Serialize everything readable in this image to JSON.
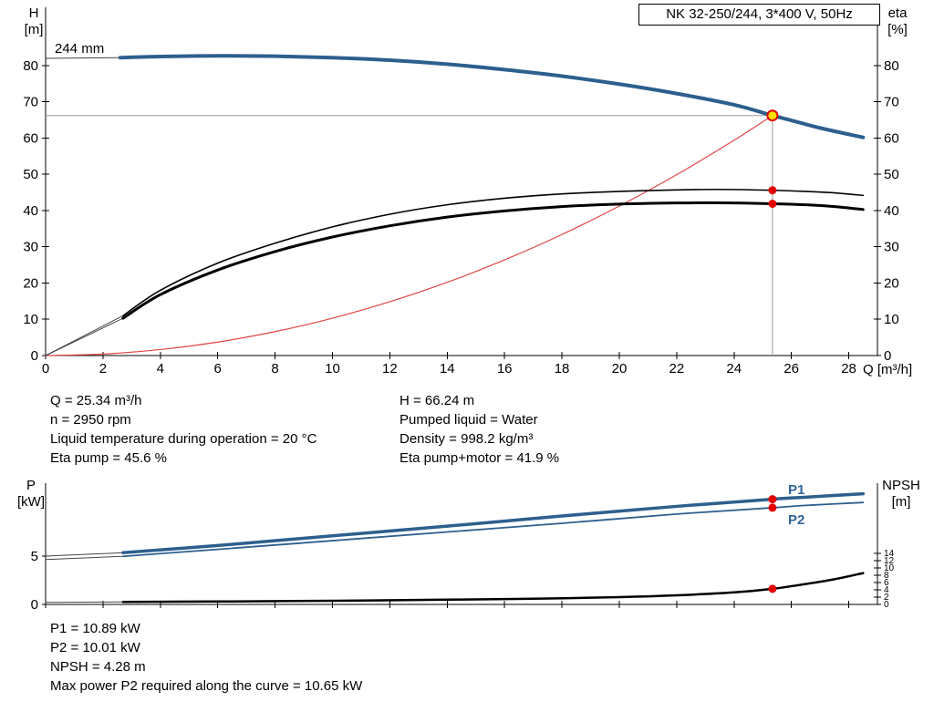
{
  "title_box": {
    "label": "NK 32-250/244, 3*400 V, 50Hz"
  },
  "top_chart_labels": {
    "y_left_title": "H",
    "y_left_unit": "[m]",
    "y_right_title": "eta",
    "y_right_unit": "[%]",
    "x_unit": "Q [m³/h]",
    "impeller": "244 mm"
  },
  "bottom_chart_labels": {
    "y_left_title": "P",
    "y_left_unit": "[kW]",
    "y_right_title": "NPSH",
    "y_right_unit": "[m]",
    "p1": "P1",
    "p2": "P2"
  },
  "info_top": {
    "left": [
      "Q = 25.34 m³/h",
      "n = 2950 rpm",
      "Liquid temperature during operation = 20 °C",
      "Eta pump = 45.6 %"
    ],
    "right": [
      "H = 66.24 m",
      "Pumped liquid = Water",
      "Density = 998.2 kg/m³",
      "Eta pump+motor = 41.9 %"
    ]
  },
  "info_bottom": [
    "P1 = 10.89 kW",
    "P2 = 10.01 kW",
    "NPSH = 4.28 m",
    "Max power P2 required along the curve = 10.65 kW"
  ],
  "colors": {
    "curve_blue": "#2d5f8e",
    "label_blue": "#336699",
    "red": "#e00000",
    "system_red": "#e04545",
    "duty_fill": "#ffdf00",
    "gray_line": "#999999",
    "black": "#000000"
  },
  "chart_data": [
    {
      "type": "line",
      "title": "NK 32-250/244, 3*400 V, 50Hz",
      "xlabel": "Q [m³/h]",
      "ylabel_left": "H [m]",
      "ylabel_right": "eta [%]",
      "xlim": [
        0,
        29
      ],
      "ylim_left": [
        0,
        96.1
      ],
      "ylim_right": [
        0,
        96.1
      ],
      "x_ticks": [
        0,
        2,
        4,
        6,
        8,
        10,
        12,
        14,
        16,
        18,
        20,
        22,
        24,
        26,
        28
      ],
      "y_ticks_left": [
        0,
        10,
        20,
        30,
        40,
        50,
        60,
        70,
        80
      ],
      "y_ticks_right": [
        0,
        10,
        20,
        30,
        40,
        50,
        60,
        70,
        80
      ],
      "series": [
        {
          "name": "system-curve",
          "axis": "left",
          "color_key": "system_red",
          "width": 1.2,
          "points": [
            [
              0,
              0
            ],
            [
              2,
              0.41
            ],
            [
              4,
              1.65
            ],
            [
              6,
              3.71
            ],
            [
              8,
              6.6
            ],
            [
              10,
              10.3
            ],
            [
              12,
              14.85
            ],
            [
              14,
              20.2
            ],
            [
              16,
              26.4
            ],
            [
              18,
              33.4
            ],
            [
              20,
              41.25
            ],
            [
              22,
              49.9
            ],
            [
              24,
              59.4
            ],
            [
              25.34,
              66.24
            ]
          ]
        },
        {
          "name": "eta-pump-curve",
          "axis": "right",
          "color_key": "black",
          "width": 1.6,
          "lead": [
            [
              0,
              0
            ],
            [
              2.7,
              11
            ]
          ],
          "points": [
            [
              2.7,
              11
            ],
            [
              4,
              18
            ],
            [
              6,
              25.5
            ],
            [
              8,
              31
            ],
            [
              10,
              35.5
            ],
            [
              12,
              39
            ],
            [
              14,
              41.6
            ],
            [
              16,
              43.4
            ],
            [
              18,
              44.6
            ],
            [
              20,
              45.3
            ],
            [
              22,
              45.7
            ],
            [
              23.5,
              45.85
            ],
            [
              25.34,
              45.6
            ],
            [
              26.5,
              45.3
            ],
            [
              27.5,
              44.9
            ],
            [
              28.5,
              44.2
            ]
          ]
        },
        {
          "name": "eta-pump-motor-curve",
          "axis": "right",
          "color_key": "black",
          "width": 3,
          "lead": [
            [
              0,
              0
            ],
            [
              2.7,
              10.3
            ]
          ],
          "points": [
            [
              2.7,
              10.3
            ],
            [
              4,
              16.8
            ],
            [
              6,
              23.6
            ],
            [
              8,
              28.7
            ],
            [
              10,
              32.7
            ],
            [
              12,
              35.8
            ],
            [
              14,
              38.2
            ],
            [
              16,
              39.9
            ],
            [
              18,
              41.1
            ],
            [
              20,
              41.8
            ],
            [
              22,
              42.1
            ],
            [
              23.5,
              42.15
            ],
            [
              25.34,
              41.9
            ],
            [
              26.5,
              41.6
            ],
            [
              27.5,
              41.1
            ],
            [
              28.5,
              40.3
            ]
          ]
        },
        {
          "name": "head-curve-244mm",
          "axis": "left",
          "color_key": "curve_blue",
          "width": 4,
          "lead": [
            [
              0,
              82.0
            ],
            [
              2.6,
              82.2
            ]
          ],
          "points": [
            [
              2.6,
              82.2
            ],
            [
              4,
              82.5
            ],
            [
              6,
              82.7
            ],
            [
              8,
              82.6
            ],
            [
              10,
              82.2
            ],
            [
              12,
              81.5
            ],
            [
              14,
              80.4
            ],
            [
              16,
              78.9
            ],
            [
              18,
              77.1
            ],
            [
              20,
              74.9
            ],
            [
              22,
              72.3
            ],
            [
              24,
              69.2
            ],
            [
              25.34,
              66.24
            ],
            [
              26,
              64.9
            ],
            [
              27,
              62.8
            ],
            [
              28.5,
              60.2
            ]
          ]
        }
      ],
      "duty_point": {
        "q": 25.34,
        "h": 66.24
      },
      "duty_markers_eta": [
        45.6,
        41.9
      ]
    },
    {
      "type": "line",
      "ylabel_left": "P [kW]",
      "ylabel_right": "NPSH [m]",
      "xlim": [
        0,
        29
      ],
      "ylim_left": [
        0,
        12.55
      ],
      "ylim_right": [
        0,
        33.25
      ],
      "x_ticks": [
        0,
        2,
        4,
        6,
        8,
        10,
        12,
        14,
        16,
        18,
        20,
        22,
        24,
        26,
        28
      ],
      "y_ticks_left": [
        0,
        5
      ],
      "y_ticks_right": [
        0,
        2,
        4,
        6,
        8,
        10,
        12,
        14
      ],
      "series": [
        {
          "name": "p1-curve",
          "axis": "left",
          "color_key": "curve_blue",
          "width": 3.5,
          "lead": [
            [
              0,
              5.0
            ],
            [
              2.7,
              5.35
            ]
          ],
          "points": [
            [
              2.7,
              5.35
            ],
            [
              6,
              6.1
            ],
            [
              10,
              7.1
            ],
            [
              14,
              8.1
            ],
            [
              18,
              9.15
            ],
            [
              22,
              10.15
            ],
            [
              25.34,
              10.89
            ],
            [
              26.5,
              11.1
            ],
            [
              28.5,
              11.45
            ]
          ]
        },
        {
          "name": "p2-curve",
          "axis": "left",
          "color_key": "curve_blue",
          "width": 1.8,
          "lead": [
            [
              0,
              4.65
            ],
            [
              2.7,
              4.98
            ]
          ],
          "points": [
            [
              2.7,
              4.98
            ],
            [
              6,
              5.7
            ],
            [
              10,
              6.6
            ],
            [
              14,
              7.5
            ],
            [
              18,
              8.4
            ],
            [
              22,
              9.35
            ],
            [
              25.34,
              10.01
            ],
            [
              26.5,
              10.25
            ],
            [
              28.5,
              10.55
            ]
          ]
        },
        {
          "name": "npsh-curve",
          "axis": "right",
          "color_key": "black",
          "width": 2.5,
          "lead": [
            [
              0,
              0.55
            ],
            [
              2.7,
              0.7
            ]
          ],
          "points": [
            [
              2.7,
              0.7
            ],
            [
              6,
              0.8
            ],
            [
              10,
              1.0
            ],
            [
              14,
              1.3
            ],
            [
              17,
              1.55
            ],
            [
              20,
              2.0
            ],
            [
              22,
              2.5
            ],
            [
              24,
              3.3
            ],
            [
              25.34,
              4.28
            ],
            [
              26.5,
              5.6
            ],
            [
              27.5,
              6.9
            ],
            [
              28.5,
              8.6
            ]
          ]
        }
      ],
      "duty_markers": [
        {
          "axis": "left",
          "q": 25.34,
          "v": 10.89
        },
        {
          "axis": "left",
          "q": 25.34,
          "v": 10.01
        },
        {
          "axis": "right",
          "q": 25.34,
          "v": 4.28
        }
      ]
    }
  ]
}
